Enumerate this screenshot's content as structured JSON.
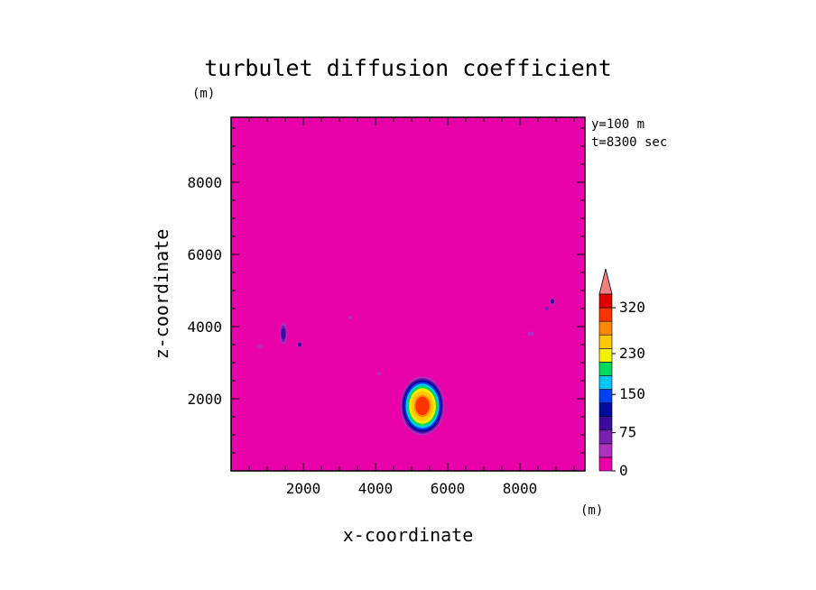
{
  "chart_data": {
    "type": "heatmap",
    "title": "turbulet diffusion coefficient",
    "xlabel": "x-coordinate",
    "ylabel": "z-coordinate",
    "xunit": "(m)",
    "yunit": "(m)",
    "annotations": [
      "y=100 m",
      "t=8300 sec"
    ],
    "xlim": [
      0,
      9800
    ],
    "ylim": [
      0,
      9800
    ],
    "xticks": [
      2000,
      4000,
      6000,
      8000
    ],
    "yticks": [
      2000,
      4000,
      6000,
      8000
    ],
    "background_level": 0,
    "colorbar": {
      "tick_labels": [
        "0",
        "75",
        "150",
        "230",
        "320"
      ],
      "tick_values": [
        0,
        75,
        150,
        230,
        320
      ],
      "level_bounds": [
        0,
        25,
        50,
        75,
        100,
        125,
        150,
        175,
        200,
        230,
        260,
        290,
        320,
        350
      ],
      "colors": [
        "#e800a8",
        "#b030c0",
        "#7820b0",
        "#3c0a9c",
        "#000c9c",
        "#0042ee",
        "#00c8ff",
        "#00d860",
        "#f0f000",
        "#ffc800",
        "#ff8800",
        "#ff3300",
        "#dd0000"
      ],
      "extend_color": "#f08080"
    },
    "features": [
      {
        "x": 5300,
        "z": 1800,
        "rx": 600,
        "rz": 800,
        "peak": 300
      },
      {
        "x": 1450,
        "z": 3800,
        "rx": 120,
        "rz": 350,
        "peak": 100
      },
      {
        "x": 1900,
        "z": 3500,
        "rx": 80,
        "rz": 120,
        "peak": 80
      },
      {
        "x": 8900,
        "z": 4700,
        "rx": 100,
        "rz": 120,
        "peak": 90
      },
      {
        "x": 8750,
        "z": 4500,
        "rx": 80,
        "rz": 80,
        "peak": 60
      },
      {
        "x": 800,
        "z": 3450,
        "rx": 70,
        "rz": 70,
        "peak": 40
      },
      {
        "x": 3300,
        "z": 4250,
        "rx": 60,
        "rz": 60,
        "peak": 30
      },
      {
        "x": 8300,
        "z": 3800,
        "rx": 150,
        "rz": 100,
        "peak": 40
      },
      {
        "x": 4100,
        "z": 2700,
        "rx": 50,
        "rz": 50,
        "peak": 30
      }
    ]
  }
}
